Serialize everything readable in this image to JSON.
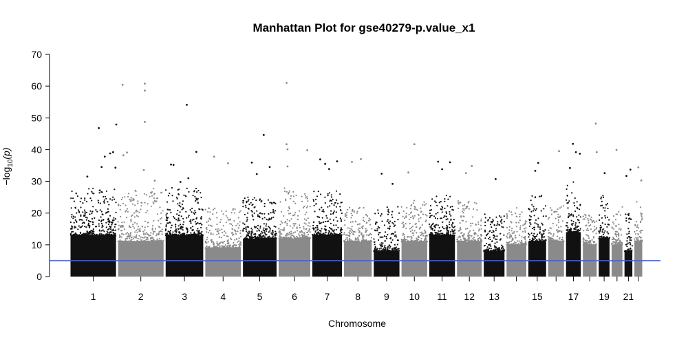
{
  "chart_data": {
    "type": "scatter",
    "title": "Manhattan Plot for gse40279-p.value_x1",
    "xlabel": "Chromosome",
    "ylabel": "−log₁₀(p)",
    "ylabel_parts": {
      "prefix": "−log",
      "sub": "10",
      "suffix": "(p)"
    },
    "ylim": [
      0,
      70
    ],
    "yticks": [
      0,
      10,
      20,
      30,
      40,
      50,
      60,
      70
    ],
    "grid": false,
    "legend": "none",
    "colors": {
      "odd": "#111111",
      "even": "#8a8a8a",
      "threshold": "#4a5fd0"
    },
    "threshold": 5,
    "chromosomes": [
      {
        "chr": "1",
        "label": "1",
        "start": 0,
        "end": 240,
        "base": 13,
        "cap": 28
      },
      {
        "chr": "2",
        "label": "2",
        "start": 240,
        "end": 480,
        "base": 11,
        "cap": 28
      },
      {
        "chr": "3",
        "label": "3",
        "start": 480,
        "end": 680,
        "base": 13,
        "cap": 28
      },
      {
        "chr": "4",
        "label": "4",
        "start": 680,
        "end": 870,
        "base": 9,
        "cap": 22
      },
      {
        "chr": "5",
        "label": "5",
        "start": 870,
        "end": 1050,
        "base": 12,
        "cap": 25
      },
      {
        "chr": "6",
        "label": "6",
        "start": 1050,
        "end": 1220,
        "base": 12,
        "cap": 28
      },
      {
        "chr": "7",
        "label": "7",
        "start": 1220,
        "end": 1380,
        "base": 13,
        "cap": 27
      },
      {
        "chr": "8",
        "label": "8",
        "start": 1380,
        "end": 1530,
        "base": 11,
        "cap": 22
      },
      {
        "chr": "9",
        "label": "9",
        "start": 1530,
        "end": 1670,
        "base": 8,
        "cap": 22
      },
      {
        "chr": "10",
        "label": "10",
        "start": 1670,
        "end": 1810,
        "base": 11,
        "cap": 24
      },
      {
        "chr": "11",
        "label": "11",
        "start": 1810,
        "end": 1950,
        "base": 13,
        "cap": 26
      },
      {
        "chr": "12",
        "label": "12",
        "start": 1950,
        "end": 2085,
        "base": 11,
        "cap": 24
      },
      {
        "chr": "13",
        "label": "13",
        "start": 2085,
        "end": 2200,
        "base": 8,
        "cap": 20
      },
      {
        "chr": "14",
        "label": "",
        "start": 2200,
        "end": 2310,
        "base": 10,
        "cap": 22
      },
      {
        "chr": "15",
        "label": "15",
        "start": 2310,
        "end": 2410,
        "base": 11,
        "cap": 26
      },
      {
        "chr": "16",
        "label": "",
        "start": 2410,
        "end": 2500,
        "base": 11,
        "cap": 24
      },
      {
        "chr": "17",
        "label": "17",
        "start": 2500,
        "end": 2585,
        "base": 14,
        "cap": 30
      },
      {
        "chr": "18",
        "label": "",
        "start": 2585,
        "end": 2665,
        "base": 10,
        "cap": 20
      },
      {
        "chr": "19",
        "label": "19",
        "start": 2665,
        "end": 2730,
        "base": 12,
        "cap": 26
      },
      {
        "chr": "20",
        "label": "",
        "start": 2730,
        "end": 2795,
        "base": 10,
        "cap": 22
      },
      {
        "chr": "21",
        "label": "21",
        "start": 2795,
        "end": 2845,
        "base": 8,
        "cap": 20
      },
      {
        "chr": "22",
        "label": "",
        "start": 2845,
        "end": 2895,
        "base": 11,
        "cap": 24
      }
    ],
    "highlights": [
      {
        "x": 148,
        "y": 46.8
      },
      {
        "x": 90,
        "y": 31.5
      },
      {
        "x": 205,
        "y": 38.8
      },
      {
        "x": 178,
        "y": 37.8
      },
      {
        "x": 162,
        "y": 34.5
      },
      {
        "x": 268,
        "y": 60.4
      },
      {
        "x": 236,
        "y": 47.9
      },
      {
        "x": 220,
        "y": 39.2
      },
      {
        "x": 232,
        "y": 34.3
      },
      {
        "x": 272,
        "y": 38.2
      },
      {
        "x": 290,
        "y": 39.1
      },
      {
        "x": 380,
        "y": 60.8
      },
      {
        "x": 380,
        "y": 58.6
      },
      {
        "x": 380,
        "y": 48.7
      },
      {
        "x": 375,
        "y": 33.6
      },
      {
        "x": 430,
        "y": 30.2
      },
      {
        "x": 512,
        "y": 35.3
      },
      {
        "x": 525,
        "y": 35.2
      },
      {
        "x": 560,
        "y": 29.8
      },
      {
        "x": 592,
        "y": 54.1
      },
      {
        "x": 640,
        "y": 39.3
      },
      {
        "x": 600,
        "y": 31.0
      },
      {
        "x": 730,
        "y": 37.8
      },
      {
        "x": 800,
        "y": 35.7
      },
      {
        "x": 920,
        "y": 35.9
      },
      {
        "x": 980,
        "y": 44.6
      },
      {
        "x": 945,
        "y": 32.3
      },
      {
        "x": 1010,
        "y": 34.5
      },
      {
        "x": 1095,
        "y": 61.0
      },
      {
        "x": 1095,
        "y": 41.7
      },
      {
        "x": 1100,
        "y": 40.1
      },
      {
        "x": 1100,
        "y": 34.7
      },
      {
        "x": 1200,
        "y": 39.8
      },
      {
        "x": 1265,
        "y": 36.9
      },
      {
        "x": 1290,
        "y": 35.5
      },
      {
        "x": 1350,
        "y": 36.3
      },
      {
        "x": 1310,
        "y": 33.9
      },
      {
        "x": 1425,
        "y": 36.1
      },
      {
        "x": 1470,
        "y": 37.0
      },
      {
        "x": 1575,
        "y": 32.4
      },
      {
        "x": 1630,
        "y": 29.2
      },
      {
        "x": 1740,
        "y": 41.7
      },
      {
        "x": 1710,
        "y": 32.8
      },
      {
        "x": 1860,
        "y": 36.2
      },
      {
        "x": 1920,
        "y": 36.0
      },
      {
        "x": 1880,
        "y": 33.8
      },
      {
        "x": 2030,
        "y": 34.8
      },
      {
        "x": 2000,
        "y": 32.6
      },
      {
        "x": 2150,
        "y": 30.7
      },
      {
        "x": 2365,
        "y": 35.8
      },
      {
        "x": 2350,
        "y": 33.3
      },
      {
        "x": 2470,
        "y": 39.5
      },
      {
        "x": 2540,
        "y": 41.8
      },
      {
        "x": 2555,
        "y": 39.2
      },
      {
        "x": 2575,
        "y": 38.7
      },
      {
        "x": 2525,
        "y": 34.2
      },
      {
        "x": 2655,
        "y": 48.2
      },
      {
        "x": 2660,
        "y": 39.2
      },
      {
        "x": 2700,
        "y": 32.6
      },
      {
        "x": 2760,
        "y": 39.9
      },
      {
        "x": 2810,
        "y": 31.7
      },
      {
        "x": 2830,
        "y": 33.7
      },
      {
        "x": 2870,
        "y": 34.4
      },
      {
        "x": 2885,
        "y": 30.3
      }
    ]
  }
}
